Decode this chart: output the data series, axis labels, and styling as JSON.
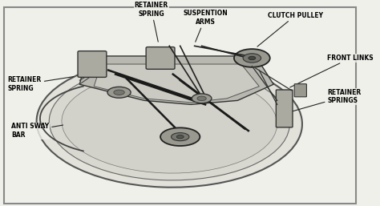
{
  "title": "",
  "background_color": "#f0f0eb",
  "border_color": "#888888",
  "annotations": [
    {
      "text": "RETAINER\nSPRING",
      "txy": [
        0.42,
        0.97
      ],
      "axy": [
        0.44,
        0.8
      ],
      "ha": "center"
    },
    {
      "text": "SUSPENTION\nARMS",
      "txy": [
        0.57,
        0.93
      ],
      "axy": [
        0.54,
        0.8
      ],
      "ha": "center"
    },
    {
      "text": "CLUTCH PULLEY",
      "txy": [
        0.82,
        0.94
      ],
      "axy": [
        0.71,
        0.78
      ],
      "ha": "center"
    },
    {
      "text": "FRONT LINKS",
      "txy": [
        0.91,
        0.73
      ],
      "axy": [
        0.8,
        0.58
      ],
      "ha": "left"
    },
    {
      "text": "RETAINER\nSPRINGS",
      "txy": [
        0.91,
        0.54
      ],
      "axy": [
        0.8,
        0.46
      ],
      "ha": "left"
    },
    {
      "text": "RETAINER\nSPRING",
      "txy": [
        0.02,
        0.6
      ],
      "axy": [
        0.21,
        0.64
      ],
      "ha": "left"
    },
    {
      "text": "ANTI SWAY\nBAR",
      "txy": [
        0.03,
        0.37
      ],
      "axy": [
        0.18,
        0.4
      ],
      "ha": "left"
    }
  ],
  "fig_width": 4.74,
  "fig_height": 2.57,
  "dpi": 100
}
